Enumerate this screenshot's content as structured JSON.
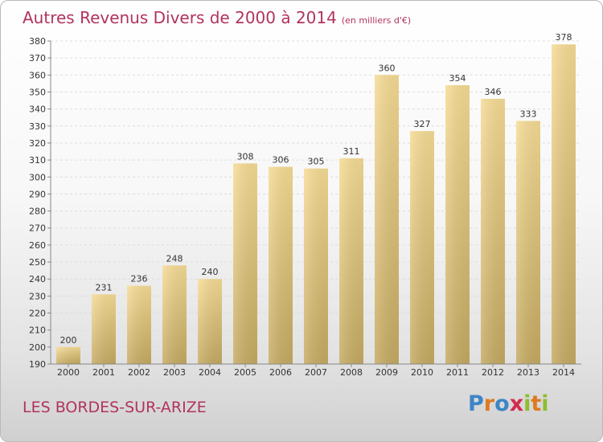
{
  "header": {
    "title": "Autres Revenus Divers de 2000 à 2014",
    "subtitle": "(en milliers d'€)"
  },
  "footer": {
    "location": "LES BORDES-SUR-ARIZE",
    "logo_letters": [
      "P",
      "r",
      "o",
      "x",
      "i",
      "t",
      "i"
    ]
  },
  "colors": {
    "title": "#b1335d",
    "bar_top": "#f6dc95",
    "bar_bottom": "#c5aa62",
    "grid": "#dddddd"
  },
  "chart_data": {
    "type": "bar",
    "title": "Autres Revenus Divers de 2000 à 2014",
    "subtitle": "(en milliers d'€)",
    "categories": [
      "2000",
      "2001",
      "2002",
      "2003",
      "2004",
      "2005",
      "2006",
      "2007",
      "2008",
      "2009",
      "2010",
      "2011",
      "2012",
      "2013",
      "2014"
    ],
    "values": [
      200,
      231,
      236,
      248,
      240,
      308,
      306,
      305,
      311,
      360,
      327,
      354,
      346,
      333,
      378
    ],
    "ylim": [
      190,
      380
    ],
    "yticks": [
      190,
      200,
      210,
      220,
      230,
      240,
      250,
      260,
      270,
      280,
      290,
      300,
      310,
      320,
      330,
      340,
      350,
      360,
      370,
      380
    ],
    "grid": true,
    "xlabel": "",
    "ylabel": ""
  }
}
